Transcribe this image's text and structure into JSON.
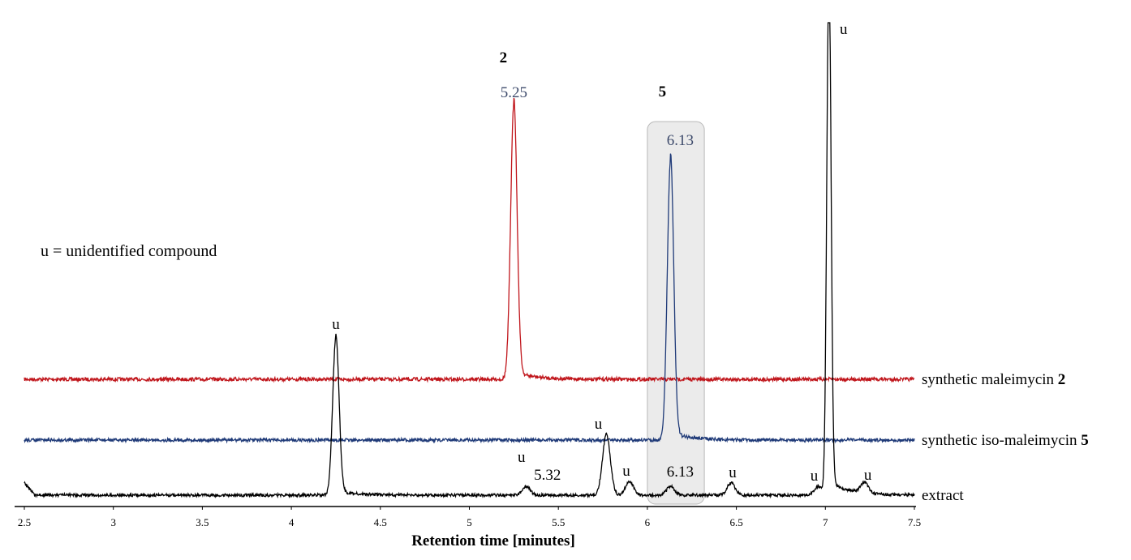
{
  "colors": {
    "extract": "#000000",
    "iso": "#1f3a78",
    "maleimycin": "#c0151b",
    "highlight_fill": "#ebebeb",
    "highlight_stroke": "#b8b8b8",
    "rt_text": "#3d4a6b"
  },
  "chart_data": {
    "type": "line",
    "title": "",
    "xlabel": "Retention time [minutes]",
    "ylabel": "",
    "xlim": [
      2.5,
      7.5
    ],
    "xticks": [
      "2.5",
      "3",
      "3.5",
      "4",
      "4.5",
      "5",
      "5.5",
      "6",
      "6.5",
      "7",
      "7.5"
    ],
    "grid": false,
    "legend": "labels at right end of each trace",
    "note": "u = unidentified compound",
    "series": [
      {
        "name": "synthetic maleimycin",
        "name_bold": "2",
        "color": "#c0151b",
        "peaks": [
          {
            "rt": 5.25,
            "height": 1.0,
            "label": "5.25",
            "compound": "2"
          }
        ]
      },
      {
        "name": "synthetic iso-maleimycin",
        "name_bold": "5",
        "color": "#1f3a78",
        "peaks": [
          {
            "rt": 6.13,
            "height": 1.0,
            "label": "6.13",
            "compound": "5"
          }
        ]
      },
      {
        "name": "extract",
        "name_bold": "",
        "color": "#000000",
        "peaks": [
          {
            "rt": 4.25,
            "height": 0.9,
            "label": "u"
          },
          {
            "rt": 5.32,
            "height": 0.05,
            "label": "5.32",
            "label2": "u"
          },
          {
            "rt": 5.77,
            "height": 0.35,
            "label": "u"
          },
          {
            "rt": 5.9,
            "height": 0.08,
            "label": "u"
          },
          {
            "rt": 6.13,
            "height": 0.05,
            "label": "6.13"
          },
          {
            "rt": 6.47,
            "height": 0.07,
            "label": "u"
          },
          {
            "rt": 6.96,
            "height": 0.05,
            "label": "u"
          },
          {
            "rt": 7.02,
            "height": 3.0,
            "label": "u"
          },
          {
            "rt": 7.22,
            "height": 0.06,
            "label": "u"
          }
        ]
      }
    ],
    "highlight": {
      "x_from": 6.0,
      "x_to": 6.32
    }
  }
}
